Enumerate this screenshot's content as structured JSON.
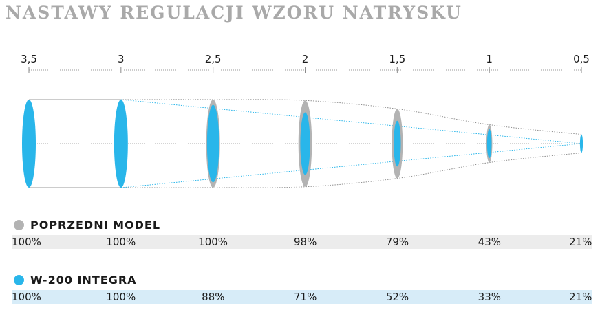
{
  "title": "NASTAWY REGULACJI WZORU NATRYSKU",
  "colors": {
    "gray": "#b3b3b3",
    "blue": "#29b6ea",
    "gray_band": "#ececec",
    "blue_band": "#d7ecf8"
  },
  "chart_data": {
    "type": "table",
    "x": [
      "3,5",
      "3",
      "2,5",
      "2",
      "1,5",
      "1",
      "0,5"
    ],
    "series": [
      {
        "name": "POPRZEDNI MODEL",
        "color": "gray",
        "values": [
          "100%",
          "100%",
          "100%",
          "98%",
          "79%",
          "43%",
          "21%"
        ]
      },
      {
        "name": "W-200 INTEGRA",
        "color": "blue",
        "values": [
          "100%",
          "100%",
          "88%",
          "71%",
          "52%",
          "33%",
          "21%"
        ]
      }
    ]
  }
}
